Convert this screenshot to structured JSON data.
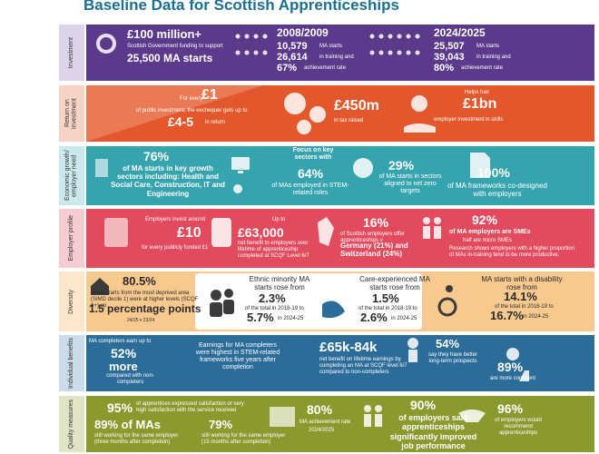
{
  "title": "Baseline Data for Scottish Apprenticeships",
  "sections": [
    {
      "label": "Investment",
      "texts": [
        "£100 million+",
        "Scottish Government funding to support",
        "25,500 MA starts",
        "2008/2009",
        "10,579",
        "MA starts",
        "26,614",
        "in training and",
        "67%",
        "achievement rate",
        "2024/2025",
        "25,507",
        "MA starts",
        "39,043",
        "in training and",
        "80%",
        "achievement rate"
      ]
    },
    {
      "label": "Return on investment",
      "texts": [
        "For every",
        "£1",
        "of public investment, the exchequer gets up to",
        "£4-5",
        "in return",
        "£450m",
        "in tax raised",
        "Helps fuel",
        "£1bn",
        "employer investment in skills"
      ]
    },
    {
      "label": "Economic growth/ employer need",
      "texts": [
        "76%",
        "of MA starts in key growth sectors including: Health and Social Care, Construction, IT and Engineering",
        "Focus on key sectors with",
        "64%",
        "of MAs employed in STEM-related roles",
        "29%",
        "of MA starts in sectors aligned to net zero targets",
        "100%",
        "of MA frameworks co-designed with employers"
      ]
    },
    {
      "label": "Employer profile",
      "texts": [
        "Employers invest around",
        "£10",
        "for every publicly funded £1",
        "Up to",
        "£63,000",
        "net benefit to employers over lifetime of apprenticeship completed at SCQF Level 6/7",
        "16%",
        "of Scottish employers offer apprenticeships v",
        "Germany (21%) and Switzerland (24%)",
        "92%",
        "of MA employers are SMEs",
        "half are micro SMEs",
        "Research shows employers with a higher proportion of MAs in-training tend to be more productive."
      ]
    },
    {
      "label": "Diversity",
      "texts": [
        "80.5%",
        "of MA starts from the most deprived area (SIMD decile 1) were at higher levels (SCQF 6+) up",
        "1.5 percentage points",
        "24/25 v 23/24",
        "Ethnic minority MA starts rose from",
        "2.3%",
        "of the total in 2018-19 to",
        "5.7%",
        "in 2024-25",
        "Care-experienced MA starts rose from",
        "1.5%",
        "of the total in 2018-19 to",
        "2.6%",
        "in 2024-25",
        "MA starts with a disability rose from",
        "14.1%",
        "of the total in 2018-19 to",
        "16.7%",
        "in 2024-25"
      ]
    },
    {
      "label": "Individual benefits",
      "texts": [
        "MA completers earn up to",
        "52%",
        "more",
        "compared with non-completers",
        "Earnings for MA completers were highest in STEM-related frameworks five years after completion",
        "£65k-84k",
        "net benefit on lifetime earnings by completing an MA at SCQF level 6/7 compared to non-completers",
        "54%",
        "say they have better long-term prospects",
        "89%",
        "are more confident"
      ]
    },
    {
      "label": "Quality measures",
      "texts": [
        "95%",
        "of apprentices expressed satisfaction or very high satisfaction with the service received",
        "89% of MAs",
        "still working for the same employer (three months after completion)",
        "79%",
        "still working for the same employer (15 months after completion)",
        "80%",
        "MA achievement rate",
        "2024/2025",
        "90%",
        "of employers said apprenticeships significantly improved job performance",
        "96%",
        "of employers would recommend apprenticeships"
      ]
    }
  ]
}
